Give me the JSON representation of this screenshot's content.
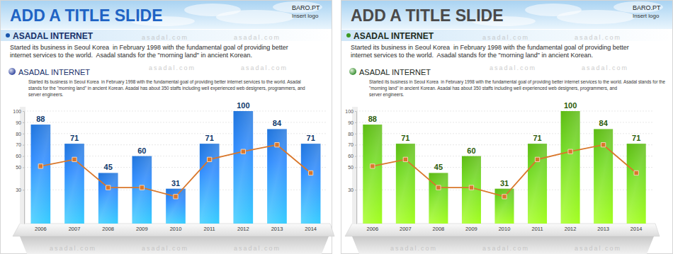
{
  "chart_data": [
    {
      "type": "bar",
      "categories": [
        "2006",
        "2007",
        "2008",
        "2009",
        "2010",
        "2011",
        "2012",
        "2013",
        "2014"
      ],
      "ylim": [
        0,
        100
      ],
      "yticks": [
        30,
        50,
        60,
        70,
        80,
        90,
        100
      ],
      "grid": true,
      "series": [
        {
          "type": "bar",
          "color": "#1f74dc",
          "data_labels": true,
          "values": [
            88,
            71,
            45,
            60,
            31,
            71,
            100,
            84,
            71
          ]
        },
        {
          "type": "line",
          "color": "#d9772b",
          "marker": "square",
          "values": [
            51,
            57,
            32,
            32,
            24,
            57,
            64,
            70,
            45
          ]
        }
      ]
    },
    {
      "type": "bar",
      "categories": [
        "2006",
        "2007",
        "2008",
        "2009",
        "2010",
        "2011",
        "2012",
        "2013",
        "2014"
      ],
      "ylim": [
        0,
        100
      ],
      "yticks": [
        30,
        50,
        60,
        70,
        80,
        90,
        100
      ],
      "grid": true,
      "series": [
        {
          "type": "bar",
          "color": "#5cbb12",
          "data_labels": true,
          "values": [
            88,
            71,
            45,
            60,
            31,
            71,
            100,
            84,
            71
          ]
        },
        {
          "type": "line",
          "color": "#d9772b",
          "marker": "square",
          "values": [
            51,
            57,
            32,
            32,
            24,
            57,
            64,
            70,
            45
          ]
        }
      ]
    }
  ],
  "slides": [
    {
      "title": "ADD A TITLE SLIDE",
      "logo": "BARO.PT",
      "logo_note": "Insert logo",
      "heading": "ASADAL INTERNET",
      "intro": [
        "Started its business in Seoul Korea  in February 1998 with the fundamental goal of providing better",
        "internet services to the world.  Asadal stands for the \"morning land\" in ancient Korean."
      ],
      "subheading": "ASADAL INTERNET",
      "body": [
        "Started its business in Seoul Korea  in February 1998 with the fundamental goal of providing better internet services to the world. Asadal",
        "stands for the \"morning land\" in ancient Korean. Asadal has about 350 staffs including well experienced web designers, programmers, and",
        "server engineers."
      ]
    },
    {
      "title": "ADD A TITLE SLIDE",
      "logo": "BARO.PT",
      "logo_note": "Insert logo",
      "heading": "ASADAL INTERNET",
      "intro": [
        "Started its business in Seoul Korea  in February 1998 with the fundamental goal of providing better",
        "internet services to the world.  Asadal stands for the \"morning land\" in ancient Korean."
      ],
      "subheading": "ASADAL INTERNET",
      "body": [
        "Started its business in Seoul Korea  in February 1998 with the fundamental goal of providing better internet services to the world. Asadal stands for the",
        "\"morning land\" in ancient Korean. Asadal has about 350 staffs including well experienced web designers, programmers, and",
        "server engineers."
      ]
    }
  ],
  "watermark": "asadal.com"
}
